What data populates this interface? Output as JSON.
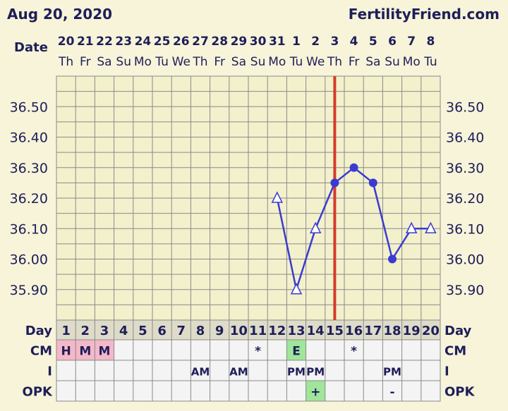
{
  "header": {
    "date": "Aug 20, 2020",
    "site": "FertilityFriend.com"
  },
  "labels": {
    "date_row": "Date",
    "day_row": "Day",
    "cm_row": "CM",
    "i_row": "I",
    "opk_row": "OPK"
  },
  "colors": {
    "background": "#f7f4d9",
    "grid": "#8a8a8a",
    "line": "#3b3bd1",
    "ovulation_line": "#d63b2a",
    "menses_cell": "#f4b8c8",
    "fertile_cell": "#9fe69a",
    "text": "#1e1e5a"
  },
  "days": [
    1,
    2,
    3,
    4,
    5,
    6,
    7,
    8,
    9,
    10,
    11,
    12,
    13,
    14,
    15,
    16,
    17,
    18,
    19,
    20
  ],
  "dates": [
    "20",
    "21",
    "22",
    "23",
    "24",
    "25",
    "26",
    "27",
    "28",
    "29",
    "30",
    "31",
    "1",
    "2",
    "3",
    "4",
    "5",
    "6",
    "7",
    "8"
  ],
  "weekdays": [
    "Th",
    "Fr",
    "Sa",
    "Su",
    "Mo",
    "Tu",
    "We",
    "Th",
    "Fr",
    "Sa",
    "Su",
    "Mo",
    "Tu",
    "We",
    "Th",
    "Fr",
    "Sa",
    "Su",
    "Mo",
    "Tu"
  ],
  "cm": [
    "H",
    "M",
    "M",
    "",
    "",
    "",
    "",
    "",
    "",
    "",
    "*",
    "",
    "E",
    "",
    "",
    "*",
    "",
    "",
    "",
    ""
  ],
  "cm_highlight": [
    "menses",
    "menses",
    "menses",
    "",
    "",
    "",
    "",
    "",
    "",
    "",
    "",
    "",
    "fertile",
    "",
    "",
    "",
    "",
    "",
    "",
    ""
  ],
  "intercourse": [
    "",
    "",
    "",
    "",
    "",
    "",
    "",
    "AM",
    "",
    "AM",
    "",
    "",
    "PM",
    "PM",
    "",
    "",
    "",
    "PM",
    "",
    ""
  ],
  "opk": [
    "",
    "",
    "",
    "",
    "",
    "",
    "",
    "",
    "",
    "",
    "",
    "",
    "",
    "+",
    "",
    "",
    "",
    "-",
    "",
    ""
  ],
  "opk_highlight": [
    "",
    "",
    "",
    "",
    "",
    "",
    "",
    "",
    "",
    "",
    "",
    "",
    "",
    "fertile",
    "",
    "",
    "",
    "",
    "",
    ""
  ],
  "chart_data": {
    "type": "line",
    "ylim": [
      35.8,
      36.6
    ],
    "yticks": [
      "36.50",
      "36.40",
      "36.30",
      "36.20",
      "36.10",
      "36.00",
      "35.90"
    ],
    "ovulation_day": 15,
    "series": [
      {
        "points": [
          {
            "day": 12,
            "temp": 36.2,
            "marker": "triangle"
          },
          {
            "day": 13,
            "temp": 35.9,
            "marker": "triangle"
          },
          {
            "day": 14,
            "temp": 36.1,
            "marker": "triangle"
          },
          {
            "day": 15,
            "temp": 36.25,
            "marker": "dot"
          },
          {
            "day": 16,
            "temp": 36.3,
            "marker": "dot"
          },
          {
            "day": 17,
            "temp": 36.25,
            "marker": "dot"
          },
          {
            "day": 18,
            "temp": 36.0,
            "marker": "dot"
          },
          {
            "day": 19,
            "temp": 36.1,
            "marker": "triangle"
          },
          {
            "day": 20,
            "temp": 36.1,
            "marker": "triangle"
          }
        ]
      }
    ]
  }
}
